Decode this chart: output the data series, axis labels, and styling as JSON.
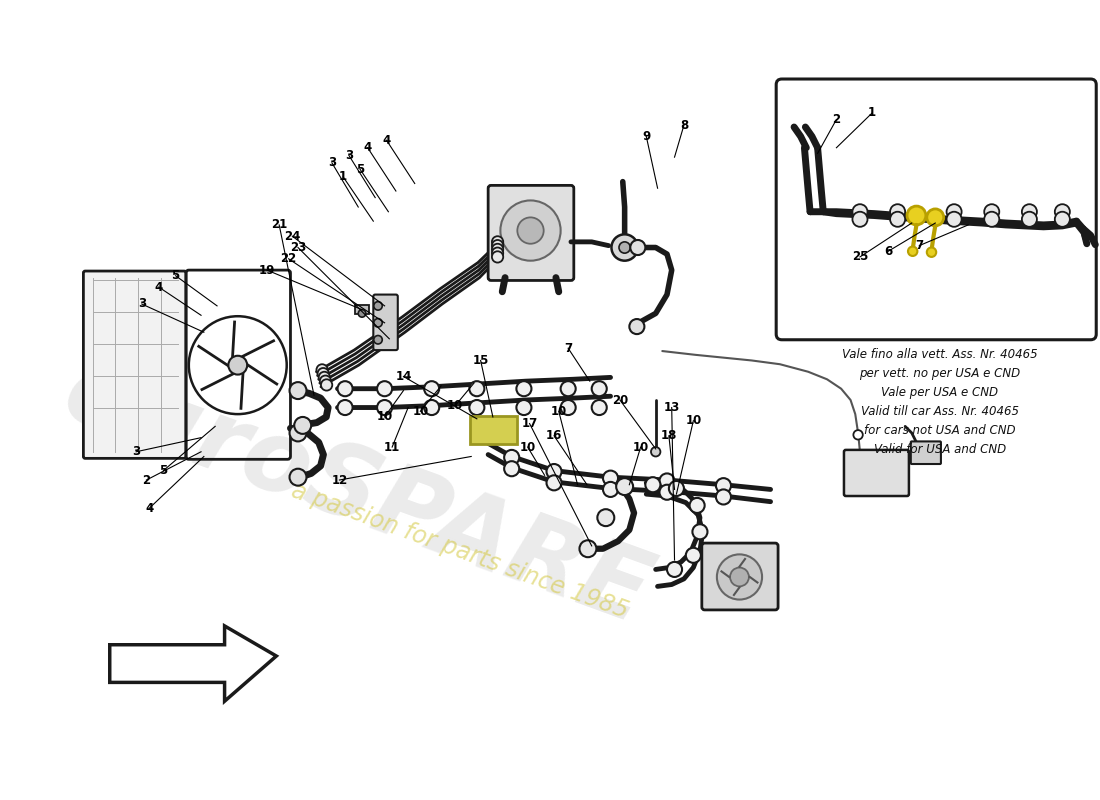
{
  "bg_color": "#ffffff",
  "line_color": "#1a1a1a",
  "annotation_text": "Vale fino alla vett. Ass. Nr. 40465\nper vett. no per USA e CND\nVale per USA e CND\nValid till car Ass. Nr. 40465\nfor cars not USA and CND\nValid for USA and CND",
  "watermark1": "euroSPARE",
  "watermark2": "a passion for parts since 1985",
  "yellow_color": "#e8d020",
  "yellow_edge": "#b8a000"
}
